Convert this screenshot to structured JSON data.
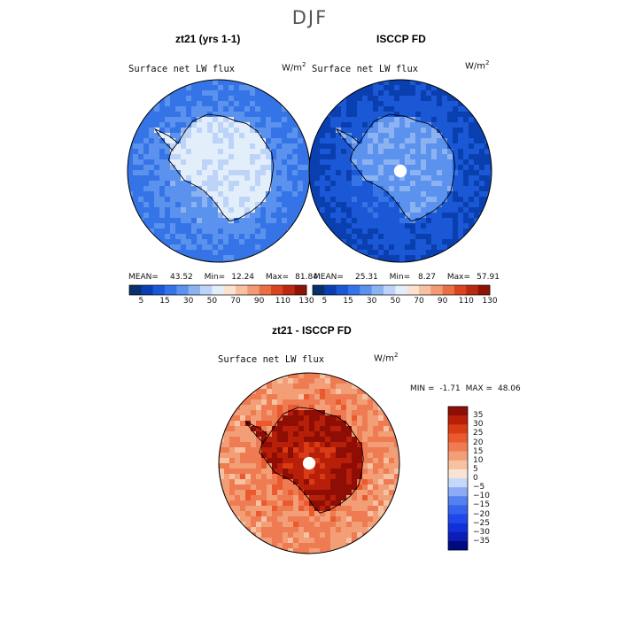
{
  "figure": {
    "season_title": "DJF",
    "panels": [
      {
        "title": "zt21 (yrs 1-1)",
        "variable": "Surface net LW flux",
        "units": "W/m",
        "units_exp": "2",
        "stats": {
          "mean_label": "MEAN=",
          "mean": "43.52",
          "min_label": "Min=",
          "min": "12.24",
          "max_label": "Max=",
          "max": "81.84"
        }
      },
      {
        "title": "ISCCP FD",
        "variable": "Surface net LW flux",
        "units": "W/m",
        "units_exp": "2",
        "stats": {
          "mean_label": "MEAN=",
          "mean": "25.31",
          "min_label": "Min=",
          "min": "8.27",
          "max_label": "Max=",
          "max": "57.91"
        }
      },
      {
        "title": "zt21 - ISCCP FD",
        "variable": "Surface net LW flux",
        "units": "W/m",
        "units_exp": "2",
        "stats": {
          "min_label": "MIN =",
          "min": "-1.71",
          "max_label": "MAX =",
          "max": "48.06"
        }
      }
    ]
  },
  "chart_data": [
    {
      "type": "heatmap",
      "projection": "south-polar-stereographic",
      "title": "zt21 (yrs 1-1)",
      "variable": "Surface net LW flux",
      "units": "W/m2",
      "mean": 43.52,
      "min": 12.24,
      "max": 81.84,
      "colorbar": {
        "orientation": "horizontal",
        "levels": [
          5,
          15,
          30,
          50,
          70,
          90,
          110,
          130
        ],
        "tick_labels": [
          "5",
          "15",
          "30",
          "50",
          "70",
          "90",
          "110",
          "130"
        ],
        "colors": [
          "#08306b",
          "#0a3fb0",
          "#1b58d6",
          "#3474e6",
          "#5b92ee",
          "#8db2f2",
          "#bdd4f8",
          "#e3eefb",
          "#fbe2d0",
          "#f7c1a1",
          "#f29a73",
          "#ea6e45",
          "#d9431f",
          "#bb2810",
          "#8e1307"
        ]
      },
      "regions": {
        "ocean_far": 35,
        "ocean_near": 45,
        "continent": 65,
        "antarctic_peninsula": 55
      }
    },
    {
      "type": "heatmap",
      "projection": "south-polar-stereographic",
      "title": "ISCCP FD",
      "variable": "Surface net LW flux",
      "units": "W/m2",
      "mean": 25.31,
      "min": 8.27,
      "max": 57.91,
      "colorbar": {
        "orientation": "horizontal",
        "levels": [
          5,
          15,
          30,
          50,
          70,
          90,
          110,
          130
        ],
        "tick_labels": [
          "5",
          "15",
          "30",
          "50",
          "70",
          "90",
          "110",
          "130"
        ],
        "colors": [
          "#08306b",
          "#0a3fb0",
          "#1b58d6",
          "#3474e6",
          "#5b92ee",
          "#8db2f2",
          "#bdd4f8",
          "#e3eefb",
          "#fbe2d0",
          "#f7c1a1",
          "#f29a73",
          "#ea6e45",
          "#d9431f",
          "#bb2810",
          "#8e1307"
        ]
      },
      "regions": {
        "ocean_far": 20,
        "ocean_near": 28,
        "continent": 45,
        "pole_missing": true
      }
    },
    {
      "type": "heatmap",
      "projection": "south-polar-stereographic",
      "title": "zt21 - ISCCP FD",
      "variable": "Surface net LW flux",
      "units": "W/m2",
      "min": -1.71,
      "max": 48.06,
      "colorbar": {
        "orientation": "vertical",
        "levels": [
          -35,
          -30,
          -25,
          -20,
          -15,
          -10,
          -5,
          0,
          5,
          10,
          15,
          20,
          25,
          30,
          35
        ],
        "tick_labels": [
          "35",
          "30",
          "25",
          "20",
          "15",
          "10",
          "5",
          "0",
          "−5",
          "−10",
          "−15",
          "−20",
          "−25",
          "−30",
          "−35"
        ],
        "colors": [
          "#000a80",
          "#0b1fb8",
          "#1230d9",
          "#2048e8",
          "#3563ec",
          "#5580f0",
          "#8cabf4",
          "#c6d8f9",
          "#f9e4d4",
          "#f6c2a2",
          "#f29e76",
          "#ee7b52",
          "#ea5a2e",
          "#d93c14",
          "#b81f08",
          "#8e0d04"
        ]
      },
      "regions": {
        "ocean_far": 12,
        "ocean_near": 15,
        "continent": 25,
        "continent_edge": 33,
        "pole_missing": true
      }
    }
  ]
}
